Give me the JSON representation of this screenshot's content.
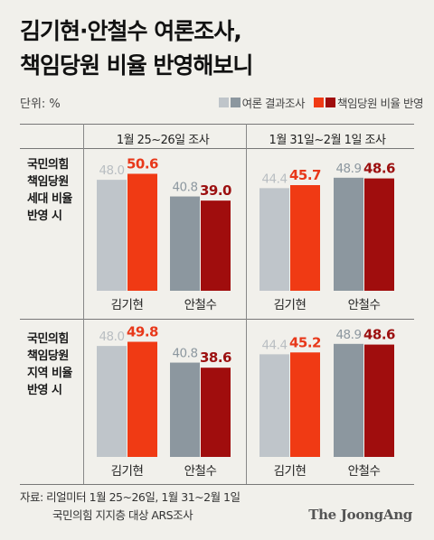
{
  "title_lines": [
    "김기현·안철수 여론조사,",
    "책임당원 비율 반영해보니"
  ],
  "unit": "단위: %",
  "legend": [
    {
      "label": "여론 결과조사",
      "colors": [
        "#bfc5ca",
        "#8c979f"
      ]
    },
    {
      "label": "책임당원 비율 반영",
      "colors": [
        "#f03a14",
        "#a00d0d"
      ]
    }
  ],
  "colors": {
    "kim_poll": "#bfc5ca",
    "kim_weighted": "#f03a14",
    "ahn_poll": "#8c979f",
    "ahn_weighted": "#a00d0d"
  },
  "chart_data": {
    "type": "bar",
    "periods": [
      "1월 25~26일 조사",
      "1월 31일~2월 1일 조사"
    ],
    "categories": [
      "김기현",
      "안철수"
    ],
    "series_labels": [
      "여론 결과조사",
      "책임당원 비율 반영"
    ],
    "panels": [
      {
        "row_label": [
          "국민의힘",
          "책임당원",
          "세대 비율",
          "반영 시"
        ],
        "groups": [
          {
            "poll": [
              48.0,
              40.8
            ],
            "weighted": [
              50.6,
              39.0
            ]
          },
          {
            "poll": [
              44.4,
              48.9
            ],
            "weighted": [
              45.7,
              48.6
            ]
          }
        ]
      },
      {
        "row_label": [
          "국민의힘",
          "책임당원",
          "지역 비율",
          "반영 시"
        ],
        "groups": [
          {
            "poll": [
              48.0,
              40.8
            ],
            "weighted": [
              49.8,
              38.6
            ]
          },
          {
            "poll": [
              44.4,
              48.9
            ],
            "weighted": [
              45.2,
              48.6
            ]
          }
        ]
      }
    ]
  },
  "source_lines": [
    "자료: 리얼미터 1월 25~26일, 1월 31~2월 1일",
    "국민의힘 지지층 대상 ARS조사"
  ],
  "brand": "The JoongAng"
}
